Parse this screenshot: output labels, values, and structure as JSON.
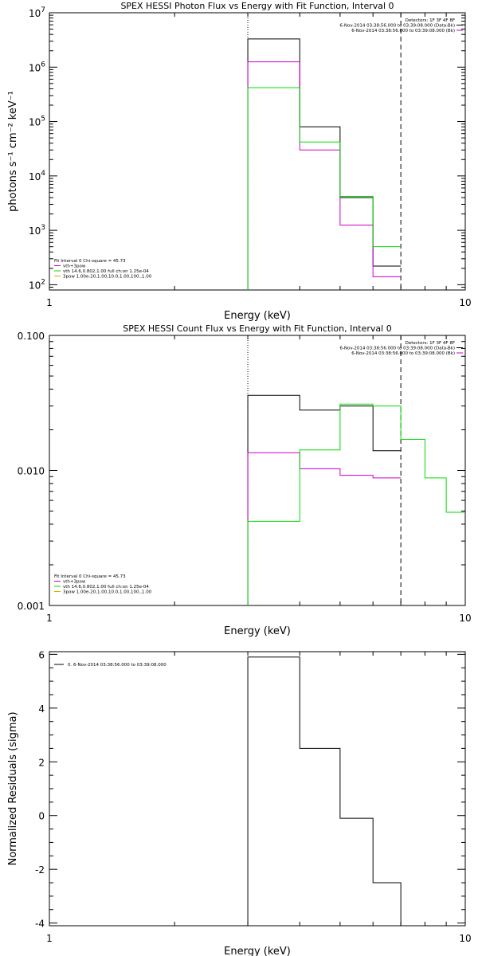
{
  "chart_data": [
    {
      "type": "line",
      "title": "SPEX HESSI Photon Flux vs Energy with Fit Function, Interval 0",
      "xlabel": "Energy (keV)",
      "ylabel": "photons s⁻¹ cm⁻² keV⁻¹",
      "xscale": "log",
      "yscale": "log",
      "xlim": [
        1,
        10
      ],
      "ylim": [
        80,
        10000000
      ],
      "x_ticks": [
        {
          "value": 1,
          "label": "1"
        },
        {
          "value": 10,
          "label": "10"
        }
      ],
      "y_ticks": [
        {
          "value": 100,
          "base": "10",
          "exp": "2"
        },
        {
          "value": 1000,
          "base": "10",
          "exp": "3"
        },
        {
          "value": 10000,
          "base": "10",
          "exp": "4"
        },
        {
          "value": 100000,
          "base": "10",
          "exp": "5"
        },
        {
          "value": 1000000,
          "base": "10",
          "exp": "6"
        },
        {
          "value": 10000000,
          "base": "10",
          "exp": "7"
        }
      ],
      "vlines": [
        {
          "x": 3.0,
          "style": "dotted"
        },
        {
          "x": 7.0,
          "style": "dashed"
        }
      ],
      "series": [
        {
          "edges": [
            3.0,
            4.0,
            5.0,
            6.0,
            7.0
          ],
          "values": [
            3300000,
            80000,
            4000,
            220
          ],
          "color": "#000000"
        },
        {
          "edges": [
            3.0,
            4.0,
            5.0,
            6.0,
            7.0
          ],
          "values": [
            1250000,
            30000,
            1250,
            140
          ],
          "color": "#cc00cc"
        },
        {
          "edges": [
            3.0,
            4.0,
            5.0,
            6.0,
            7.0
          ],
          "values": [
            420000,
            42000,
            4200,
            500
          ],
          "color": "#00dd00"
        }
      ],
      "legend_top": {
        "lines": [
          {
            "text": "Detectors: 1F 3F 4F 8F",
            "color": ""
          },
          {
            "text": "6-Nov-2014 03:38:56.000 to 03:39:08.000 (Data-Bk)",
            "color": "#000000"
          },
          {
            "text": "6-Nov-2014 03:38:56.000 to 03:39:08.000 (Bk)",
            "color": "#cc00cc"
          }
        ]
      },
      "legend_bottom": {
        "header": "Fit Interval 0   Chi-square = 45.73",
        "lines": [
          {
            "text": "vth+3pow",
            "color": "#cc00cc"
          },
          {
            "text": "vth 14.6,0.802,1.00  full ch:on 1.25e-04",
            "color": "#00dd00"
          },
          {
            "text": "3pow 1.00e-20,1.00,10.0,1.00,100.,1.00",
            "color": "#ddaa00"
          }
        ]
      }
    },
    {
      "type": "line",
      "title": "SPEX HESSI Count Flux vs Energy with Fit Function, Interval 0",
      "xlabel": "Energy (keV)",
      "ylabel": "",
      "xscale": "log",
      "yscale": "log",
      "xlim": [
        1,
        10
      ],
      "ylim": [
        0.001,
        0.1
      ],
      "x_ticks": [
        {
          "value": 1,
          "label": "1"
        },
        {
          "value": 10,
          "label": "10"
        }
      ],
      "y_ticks": [
        {
          "value": 0.001,
          "label": "0.001"
        },
        {
          "value": 0.01,
          "label": "0.010"
        },
        {
          "value": 0.1,
          "label": "0.100"
        }
      ],
      "vlines": [
        {
          "x": 3.0,
          "style": "dotted"
        },
        {
          "x": 7.0,
          "style": "dashed"
        }
      ],
      "series": [
        {
          "edges": [
            3.0,
            4.0,
            5.0,
            6.0,
            7.0
          ],
          "values": [
            0.036,
            0.028,
            0.03,
            0.014
          ],
          "color": "#000000"
        },
        {
          "edges": [
            3.0,
            4.0,
            5.0,
            6.0,
            7.0
          ],
          "values": [
            0.0135,
            0.0103,
            0.0092,
            0.0088
          ],
          "color": "#cc00cc"
        },
        {
          "edges": [
            3.0,
            4.0,
            5.0,
            6.0,
            7.0,
            8.0,
            9.0,
            10.0
          ],
          "values": [
            0.0042,
            0.0142,
            0.031,
            0.03,
            0.017,
            0.0088,
            0.0049
          ],
          "color": "#00dd00"
        }
      ],
      "legend_top": {
        "lines": [
          {
            "text": "Detectors: 1F 3F 4F 8F",
            "color": ""
          },
          {
            "text": "6-Nov-2014 03:38:56.000 to 03:39:08.000 (Data-Bk)",
            "color": "#000000"
          },
          {
            "text": "6-Nov-2014 03:38:56.000 to 03:39:08.000 (Bk)",
            "color": "#cc00cc"
          }
        ]
      },
      "legend_bottom": {
        "header": "Fit Interval 0   Chi-square = 45.73",
        "lines": [
          {
            "text": "vth+3pow",
            "color": "#cc00cc"
          },
          {
            "text": "vth 14.6,0.802,1.00  full ch:on 1.25e-04",
            "color": "#00dd00"
          },
          {
            "text": "3pow 1.00e-20,1.00,10.0,1.00,100.,1.00",
            "color": "#ddaa00"
          }
        ]
      }
    },
    {
      "type": "line",
      "title": "",
      "xlabel": "Energy (keV)",
      "ylabel": "Normalized Residuals (sigma)",
      "xscale": "log",
      "yscale": "linear",
      "xlim": [
        1,
        10
      ],
      "ylim": [
        -4.1,
        6.1
      ],
      "x_ticks": [
        {
          "value": 1,
          "label": "1"
        },
        {
          "value": 10,
          "label": "10"
        }
      ],
      "y_ticks": [
        {
          "value": -4,
          "label": "-4"
        },
        {
          "value": -2,
          "label": "-2"
        },
        {
          "value": 0,
          "label": "0"
        },
        {
          "value": 2,
          "label": "2"
        },
        {
          "value": 4,
          "label": "4"
        },
        {
          "value": 6,
          "label": "6"
        }
      ],
      "vlines": [],
      "series": [
        {
          "edges": [
            3.0,
            4.0,
            5.0,
            6.0,
            7.0
          ],
          "values": [
            5.9,
            2.5,
            -0.1,
            -2.5
          ],
          "color": "#000000",
          "drop_to_bottom": true
        }
      ],
      "legend_top": {
        "lines": []
      },
      "legend_bottom": {
        "header": "",
        "lines": []
      },
      "legend_residual": {
        "text": "0.  6-Nov-2014 03:38:56.000 to 03:39:08.000",
        "color": "#000000"
      }
    }
  ]
}
